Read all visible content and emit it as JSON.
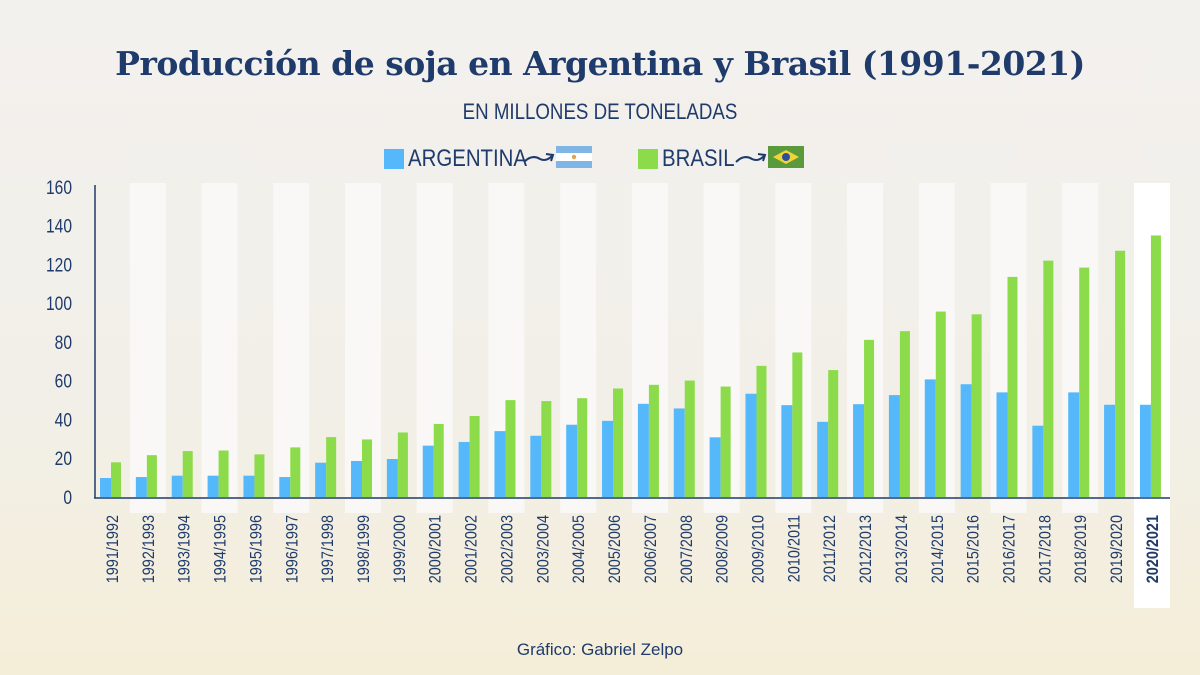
{
  "chart_data": {
    "type": "bar",
    "title": "Producción de soja en Argentina y Brasil (1991-2021)",
    "subtitle": "EN MILLONES DE TONELADAS",
    "xlabel": "",
    "ylabel": "",
    "ylim": [
      0,
      160
    ],
    "yticks": [
      "0",
      "20",
      "40",
      "60",
      "80",
      "100",
      "120",
      "140",
      "160"
    ],
    "grid": false,
    "legend_position": "top-center",
    "categories": [
      "1991/1992",
      "1992/1993",
      "1993/1994",
      "1994/1995",
      "1995/1996",
      "1996/1997",
      "1997/1998",
      "1998/1999",
      "1999/2000",
      "2000/2001",
      "2001/2002",
      "2002/2003",
      "2003/2004",
      "2004/2005",
      "2005/2006",
      "2006/2007",
      "2007/2008",
      "2008/2009",
      "2009/2010",
      "2010/2011",
      "2011/2012",
      "2012/2013",
      "2013/2014",
      "2014/2015",
      "2015/2016",
      "2016/2017",
      "2017/2018",
      "2018/2019",
      "2019/2020",
      "2020/2021"
    ],
    "highlighted_category": "2020/2021",
    "series": [
      {
        "name": "ARGENTINA",
        "color": "#55b8fb",
        "values": [
          9.8,
          10.3,
          11,
          11,
          11,
          10.3,
          17.7,
          18.6,
          19.6,
          26.5,
          28.4,
          34,
          31.6,
          37.3,
          39.3,
          48.1,
          45.7,
          30.8,
          53.3,
          47.4,
          38.8,
          47.9,
          52.6,
          60.7,
          58.2,
          54,
          36.8,
          54,
          47.6,
          47.6
        ]
      },
      {
        "name": "BRASIL",
        "color": "#8bdb4a",
        "values": [
          17.9,
          21.6,
          23.7,
          24,
          22,
          25.6,
          30.9,
          29.7,
          33.3,
          37.7,
          41.8,
          50,
          49.5,
          51,
          56,
          57.9,
          60.1,
          57,
          67.7,
          74.6,
          65.5,
          81.1,
          85.6,
          95.7,
          94.3,
          113.6,
          122,
          118.4,
          127.1,
          135
        ]
      }
    ],
    "credit": "Gráfico: Gabriel Zelpo"
  }
}
